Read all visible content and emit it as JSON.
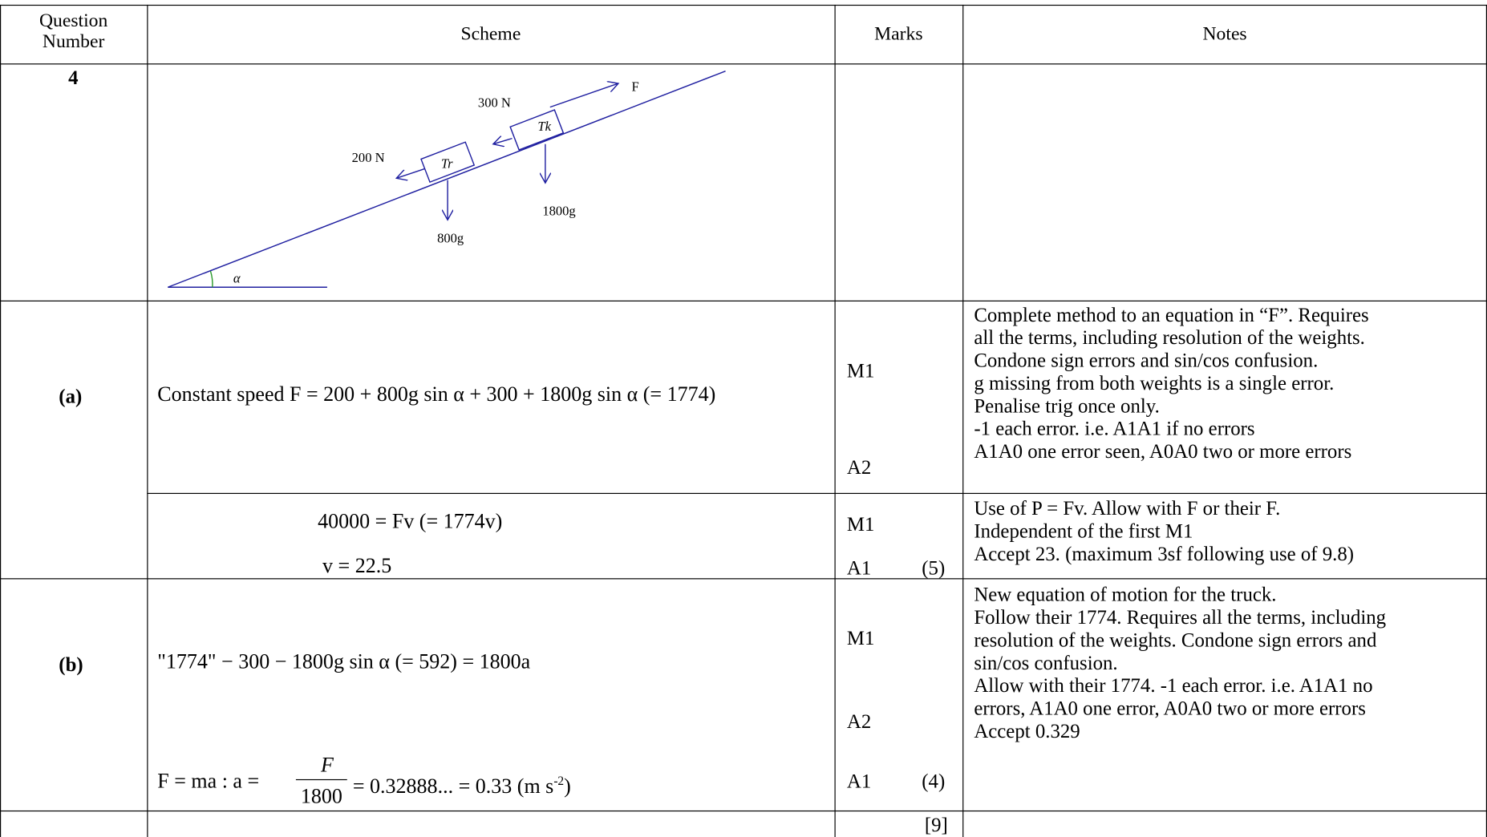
{
  "table": {
    "header": [
      "Question Number",
      "Scheme",
      "Marks",
      "Notes"
    ],
    "question": "4",
    "diagram": {
      "force": "F",
      "tension": "300 N",
      "truck": "Tk",
      "resistance": "200 N",
      "trailer": "Tr",
      "truck_weight": "1800g",
      "trailer_weight": "800g",
      "angle": "α"
    },
    "part_a": {
      "label": "(a)",
      "scheme": "Constant speed  F = 200 + 800g sin α + 300 + 1800g sin α (= 1774)",
      "marks": [
        "M1",
        "A2"
      ],
      "notes": [
        "Complete method to an equation in “F”.  Requires",
        "all the terms, including resolution of the weights.",
        "Condone sign errors and sin/cos confusion.",
        "g missing from both weights is a single error.",
        "Penalise trig once only.",
        "-1 each error.  i.e.  A1A1 if no errors",
        "A1A0 one error seen, A0A0 two or more errors"
      ],
      "scheme2": [
        "40000 = Fv (= 1774v)",
        "v = 22.5"
      ],
      "marks2": [
        "M1",
        "A1"
      ],
      "total": "(5)",
      "notes2": [
        "Use of  P = Fv.  Allow with F or their F.",
        "Independent of the first M1",
        "Accept 23.  (maximum 3sf following use of 9.8)"
      ]
    },
    "part_b": {
      "label": "(b)",
      "scheme": "\"1774\" − 300 − 1800g sin α (= 592) = 1800a",
      "formula": {
        "lead": "F = ma :   a =",
        "numerator": "F",
        "denominator": "1800",
        "result": "= 0.32888... = 0.33 (m s",
        "power": "-2",
        "close": ")"
      },
      "marks": [
        "M1",
        "A2",
        "A1"
      ],
      "total": "(4)",
      "notes": [
        "New equation of motion for the truck.",
        "Follow their 1774.  Requires all the terms, including",
        "resolution of the weights.  Condone sign errors and",
        "sin/cos confusion.",
        "Allow with their 1774. -1 each error.  i.e. A1A1 no",
        "errors, A1A0 one error, A0A0 two or more errors",
        "Accept 0.329"
      ]
    },
    "grand_total": "[9]"
  }
}
